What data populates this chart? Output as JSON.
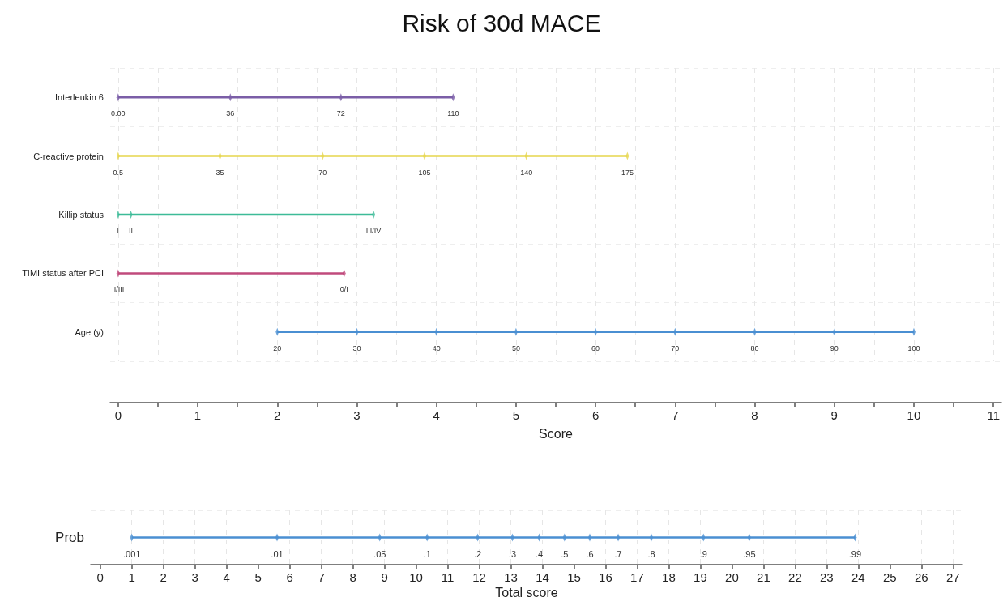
{
  "chart_data": [
    {
      "type": "bar",
      "title": "Risk of 30d MACE",
      "xlabel": "Score",
      "orientation": "horizontal",
      "grid": true,
      "marker": "diamond",
      "categories": [
        "Interleukin 6",
        "C-reactive protein",
        "Killip status",
        "TIMI status after PCI",
        "Age (y)"
      ],
      "base": [
        0,
        0,
        0,
        0,
        2
      ],
      "values": [
        4.21,
        6.4,
        3.21,
        2.84,
        8.0
      ],
      "colors": [
        "#7b5ea7",
        "#e6d64c",
        "#3dbb98",
        "#c04a7c",
        "#4a8fd2"
      ],
      "xlim": [
        -0.1,
        11.1
      ],
      "xticks": [
        0,
        {
          "value": 0.5,
          "label": null
        },
        1,
        {
          "value": 1.5,
          "label": null
        },
        2,
        {
          "value": 2.5,
          "label": null
        },
        3,
        {
          "value": 3.5,
          "label": null
        },
        4,
        {
          "value": 4.5,
          "label": null
        },
        5,
        {
          "value": 5.5,
          "label": null
        },
        6,
        {
          "value": 6.5,
          "label": null
        },
        7,
        {
          "value": 7.5,
          "label": null
        },
        8,
        {
          "value": 8.5,
          "label": null
        },
        9,
        {
          "value": 9.5,
          "label": null
        },
        10,
        {
          "value": 10.5,
          "label": null
        },
        11
      ],
      "series": [
        {
          "type": "scatter",
          "color": "#7b5ea7",
          "x": [
            "Interleukin 6",
            "Interleukin 6",
            "Interleukin 6",
            "Interleukin 6"
          ],
          "values": [
            0,
            1.41,
            2.8,
            4.21
          ]
        },
        {
          "type": "scatter",
          "color": "#e6d64c",
          "x": [
            "C-reactive protein",
            "C-reactive protein",
            "C-reactive protein",
            "C-reactive protein",
            "C-reactive protein",
            "C-reactive protein"
          ],
          "values": [
            0,
            1.28,
            2.57,
            3.85,
            5.13,
            6.4
          ]
        },
        {
          "type": "scatter",
          "color": "#3dbb98",
          "x": [
            "Killip status",
            "Killip status",
            "Killip status"
          ],
          "values": [
            0,
            0.16,
            3.21
          ]
        },
        {
          "type": "scatter",
          "color": "#c04a7c",
          "x": [
            "TIMI status after PCI",
            "TIMI status after PCI"
          ],
          "values": [
            0,
            2.84
          ]
        },
        {
          "type": "scatter",
          "color": "#4a8fd2",
          "x": [
            "Age (y)",
            "Age (y)",
            "Age (y)",
            "Age (y)",
            "Age (y)",
            "Age (y)",
            "Age (y)",
            "Age (y)",
            "Age (y)"
          ],
          "values": [
            2,
            3,
            4,
            5,
            6,
            7,
            8,
            9,
            10
          ]
        }
      ],
      "annotations": [
        {
          "text": "0.00",
          "x": 0,
          "y": "Interleukin 6"
        },
        {
          "text": "36",
          "x": 1.41,
          "y": "Interleukin 6"
        },
        {
          "text": "72",
          "x": 2.8,
          "y": "Interleukin 6"
        },
        {
          "text": "110",
          "x": 4.21,
          "y": "Interleukin 6"
        },
        {
          "text": "0.5",
          "x": 0,
          "y": "C-reactive protein"
        },
        {
          "text": "35",
          "x": 1.28,
          "y": "C-reactive protein"
        },
        {
          "text": "70",
          "x": 2.57,
          "y": "C-reactive protein"
        },
        {
          "text": "105",
          "x": 3.85,
          "y": "C-reactive protein"
        },
        {
          "text": "140",
          "x": 5.13,
          "y": "C-reactive protein"
        },
        {
          "text": "175",
          "x": 6.4,
          "y": "C-reactive protein"
        },
        {
          "text": "I",
          "x": 0,
          "y": "Killip status"
        },
        {
          "text": "II",
          "x": 0.16,
          "y": "Killip status"
        },
        {
          "text": "III/IV",
          "x": 3.21,
          "y": "Killip status"
        },
        {
          "text": "II/III",
          "x": 0,
          "y": "TIMI status after PCI"
        },
        {
          "text": "0/I",
          "x": 2.84,
          "y": "TIMI status after PCI"
        },
        {
          "text": "20",
          "x": 2,
          "y": "Age (y)"
        },
        {
          "text": "30",
          "x": 3,
          "y": "Age (y)"
        },
        {
          "text": "40",
          "x": 4,
          "y": "Age (y)"
        },
        {
          "text": "50",
          "x": 5,
          "y": "Age (y)"
        },
        {
          "text": "60",
          "x": 6,
          "y": "Age (y)"
        },
        {
          "text": "70",
          "x": 7,
          "y": "Age (y)"
        },
        {
          "text": "80",
          "x": 8,
          "y": "Age (y)"
        },
        {
          "text": "90",
          "x": 9,
          "y": "Age (y)"
        },
        {
          "text": "100",
          "x": 10,
          "y": "Age (y)"
        }
      ]
    },
    {
      "type": "bar",
      "xlabel": "Total score",
      "orientation": "horizontal",
      "grid": true,
      "marker": "diamond",
      "categories": [
        "Prob"
      ],
      "base": [
        1
      ],
      "values": [
        22.9
      ],
      "colors": [
        "#4a8fd2"
      ],
      "xlim": [
        -0.3,
        27.3
      ],
      "xticks": [
        0,
        1,
        2,
        3,
        4,
        5,
        6,
        7,
        8,
        9,
        10,
        11,
        12,
        13,
        14,
        15,
        16,
        17,
        18,
        19,
        20,
        21,
        22,
        23,
        24,
        25,
        26,
        27
      ],
      "series": [
        {
          "type": "scatter",
          "color": "#4a8fd2",
          "x": [
            "Prob",
            "Prob",
            "Prob",
            "Prob",
            "Prob",
            "Prob",
            "Prob",
            "Prob",
            "Prob",
            "Prob",
            "Prob",
            "Prob",
            "Prob",
            "Prob"
          ],
          "values": [
            1.0,
            5.6,
            8.85,
            10.35,
            11.95,
            13.05,
            13.9,
            14.7,
            15.5,
            16.4,
            17.45,
            19.1,
            20.55,
            23.9
          ]
        }
      ],
      "annotations": [
        {
          "text": ".001",
          "x": 1.0,
          "y": "Prob"
        },
        {
          "text": ".01",
          "x": 5.6,
          "y": "Prob"
        },
        {
          "text": ".05",
          "x": 8.85,
          "y": "Prob"
        },
        {
          "text": ".1",
          "x": 10.35,
          "y": "Prob"
        },
        {
          "text": ".2",
          "x": 11.95,
          "y": "Prob"
        },
        {
          "text": ".3",
          "x": 13.05,
          "y": "Prob"
        },
        {
          "text": ".4",
          "x": 13.9,
          "y": "Prob"
        },
        {
          "text": ".5",
          "x": 14.7,
          "y": "Prob"
        },
        {
          "text": ".6",
          "x": 15.5,
          "y": "Prob"
        },
        {
          "text": ".7",
          "x": 16.4,
          "y": "Prob"
        },
        {
          "text": ".8",
          "x": 17.45,
          "y": "Prob"
        },
        {
          "text": ".9",
          "x": 19.1,
          "y": "Prob"
        },
        {
          "text": ".95",
          "x": 20.55,
          "y": "Prob"
        },
        {
          "text": ".99",
          "x": 23.9,
          "y": "Prob"
        }
      ]
    }
  ]
}
